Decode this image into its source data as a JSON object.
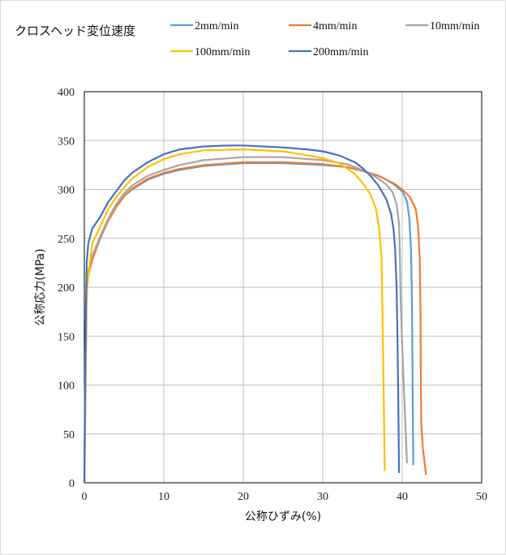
{
  "chart_data": {
    "type": "line",
    "title": "クロスヘッド変位速度",
    "xlabel": "公称ひずみ(%)",
    "ylabel": "公称応力(MPa)",
    "xlim": [
      0,
      50
    ],
    "ylim": [
      0,
      400
    ],
    "xticks": [
      0,
      10,
      20,
      30,
      40,
      50
    ],
    "yticks": [
      0,
      50,
      100,
      150,
      200,
      250,
      300,
      350,
      400
    ],
    "grid": true,
    "legend_position": "top",
    "series": [
      {
        "name": "2mm/min",
        "color": "#5B9BD5",
        "points": [
          [
            0,
            0
          ],
          [
            0.1,
            80
          ],
          [
            0.2,
            150
          ],
          [
            0.3,
            200
          ],
          [
            0.5,
            215
          ],
          [
            1,
            230
          ],
          [
            2,
            250
          ],
          [
            3,
            268
          ],
          [
            4,
            282
          ],
          [
            5,
            293
          ],
          [
            6,
            300
          ],
          [
            8,
            310
          ],
          [
            10,
            316
          ],
          [
            12,
            320
          ],
          [
            15,
            324
          ],
          [
            20,
            327
          ],
          [
            25,
            327
          ],
          [
            30,
            325
          ],
          [
            33,
            323
          ],
          [
            35,
            319
          ],
          [
            37,
            314
          ],
          [
            38,
            310
          ],
          [
            39,
            305
          ],
          [
            40,
            298
          ],
          [
            40.6,
            288
          ],
          [
            40.9,
            270
          ],
          [
            41.1,
            240
          ],
          [
            41.2,
            200
          ],
          [
            41.3,
            120
          ],
          [
            41.35,
            60
          ],
          [
            41.4,
            18
          ]
        ]
      },
      {
        "name": "4mm/min",
        "color": "#ED7D31",
        "points": [
          [
            0,
            0
          ],
          [
            0.1,
            60
          ],
          [
            0.2,
            130
          ],
          [
            0.3,
            195
          ],
          [
            0.5,
            212
          ],
          [
            1,
            228
          ],
          [
            2,
            250
          ],
          [
            3,
            268
          ],
          [
            4,
            282
          ],
          [
            5,
            293
          ],
          [
            6,
            301
          ],
          [
            8,
            311
          ],
          [
            10,
            317
          ],
          [
            12,
            321
          ],
          [
            15,
            325
          ],
          [
            20,
            328
          ],
          [
            25,
            328
          ],
          [
            30,
            326
          ],
          [
            33,
            323
          ],
          [
            35,
            319
          ],
          [
            37,
            314
          ],
          [
            39,
            306
          ],
          [
            40,
            300
          ],
          [
            41,
            292
          ],
          [
            41.7,
            280
          ],
          [
            42,
            262
          ],
          [
            42.2,
            230
          ],
          [
            42.3,
            180
          ],
          [
            42.35,
            100
          ],
          [
            42.4,
            60
          ],
          [
            42.6,
            35
          ],
          [
            43,
            8
          ]
        ]
      },
      {
        "name": "10mm/min",
        "color": "#A5A5A5",
        "points": [
          [
            0,
            0
          ],
          [
            0.1,
            90
          ],
          [
            0.2,
            160
          ],
          [
            0.3,
            205
          ],
          [
            0.5,
            217
          ],
          [
            1,
            232
          ],
          [
            2,
            252
          ],
          [
            3,
            270
          ],
          [
            4,
            285
          ],
          [
            5,
            296
          ],
          [
            6,
            304
          ],
          [
            8,
            314
          ],
          [
            10,
            320
          ],
          [
            12,
            325
          ],
          [
            15,
            330
          ],
          [
            20,
            333
          ],
          [
            25,
            333
          ],
          [
            30,
            330
          ],
          [
            33,
            326
          ],
          [
            35,
            320
          ],
          [
            36,
            316
          ],
          [
            37,
            311
          ],
          [
            38,
            305
          ],
          [
            38.8,
            297
          ],
          [
            39.3,
            285
          ],
          [
            39.6,
            265
          ],
          [
            39.7,
            235
          ],
          [
            39.8,
            190
          ],
          [
            40,
            140
          ],
          [
            40.3,
            80
          ],
          [
            40.6,
            20
          ]
        ]
      },
      {
        "name": "100mm/min",
        "color": "#FFC000",
        "points": [
          [
            0,
            0
          ],
          [
            0.1,
            100
          ],
          [
            0.2,
            170
          ],
          [
            0.4,
            205
          ],
          [
            1,
            245
          ],
          [
            2,
            262
          ],
          [
            3,
            280
          ],
          [
            4,
            292
          ],
          [
            5,
            302
          ],
          [
            6,
            311
          ],
          [
            8,
            323
          ],
          [
            10,
            331
          ],
          [
            12,
            336
          ],
          [
            15,
            340
          ],
          [
            20,
            341
          ],
          [
            25,
            339
          ],
          [
            28,
            335
          ],
          [
            30,
            332
          ],
          [
            32,
            327
          ],
          [
            33,
            322
          ],
          [
            34,
            316
          ],
          [
            35,
            307
          ],
          [
            36,
            295
          ],
          [
            36.7,
            280
          ],
          [
            37.1,
            260
          ],
          [
            37.4,
            230
          ],
          [
            37.5,
            180
          ],
          [
            37.6,
            130
          ],
          [
            37.7,
            70
          ],
          [
            37.8,
            12
          ]
        ]
      },
      {
        "name": "200mm/min",
        "color": "#4472C4",
        "points": [
          [
            0,
            0
          ],
          [
            0.1,
            110
          ],
          [
            0.2,
            180
          ],
          [
            0.3,
            225
          ],
          [
            0.5,
            245
          ],
          [
            1,
            260
          ],
          [
            2,
            272
          ],
          [
            3,
            287
          ],
          [
            4,
            298
          ],
          [
            5,
            309
          ],
          [
            6,
            317
          ],
          [
            8,
            328
          ],
          [
            10,
            336
          ],
          [
            12,
            341
          ],
          [
            15,
            344
          ],
          [
            18,
            345
          ],
          [
            20,
            345
          ],
          [
            25,
            343
          ],
          [
            28,
            341
          ],
          [
            30,
            339
          ],
          [
            32,
            335
          ],
          [
            34,
            328
          ],
          [
            35,
            322
          ],
          [
            36,
            314
          ],
          [
            37,
            304
          ],
          [
            38,
            290
          ],
          [
            38.6,
            275
          ],
          [
            38.9,
            260
          ],
          [
            39.1,
            240
          ],
          [
            39.3,
            200
          ],
          [
            39.4,
            150
          ],
          [
            39.5,
            90
          ],
          [
            39.6,
            10
          ]
        ]
      }
    ]
  }
}
